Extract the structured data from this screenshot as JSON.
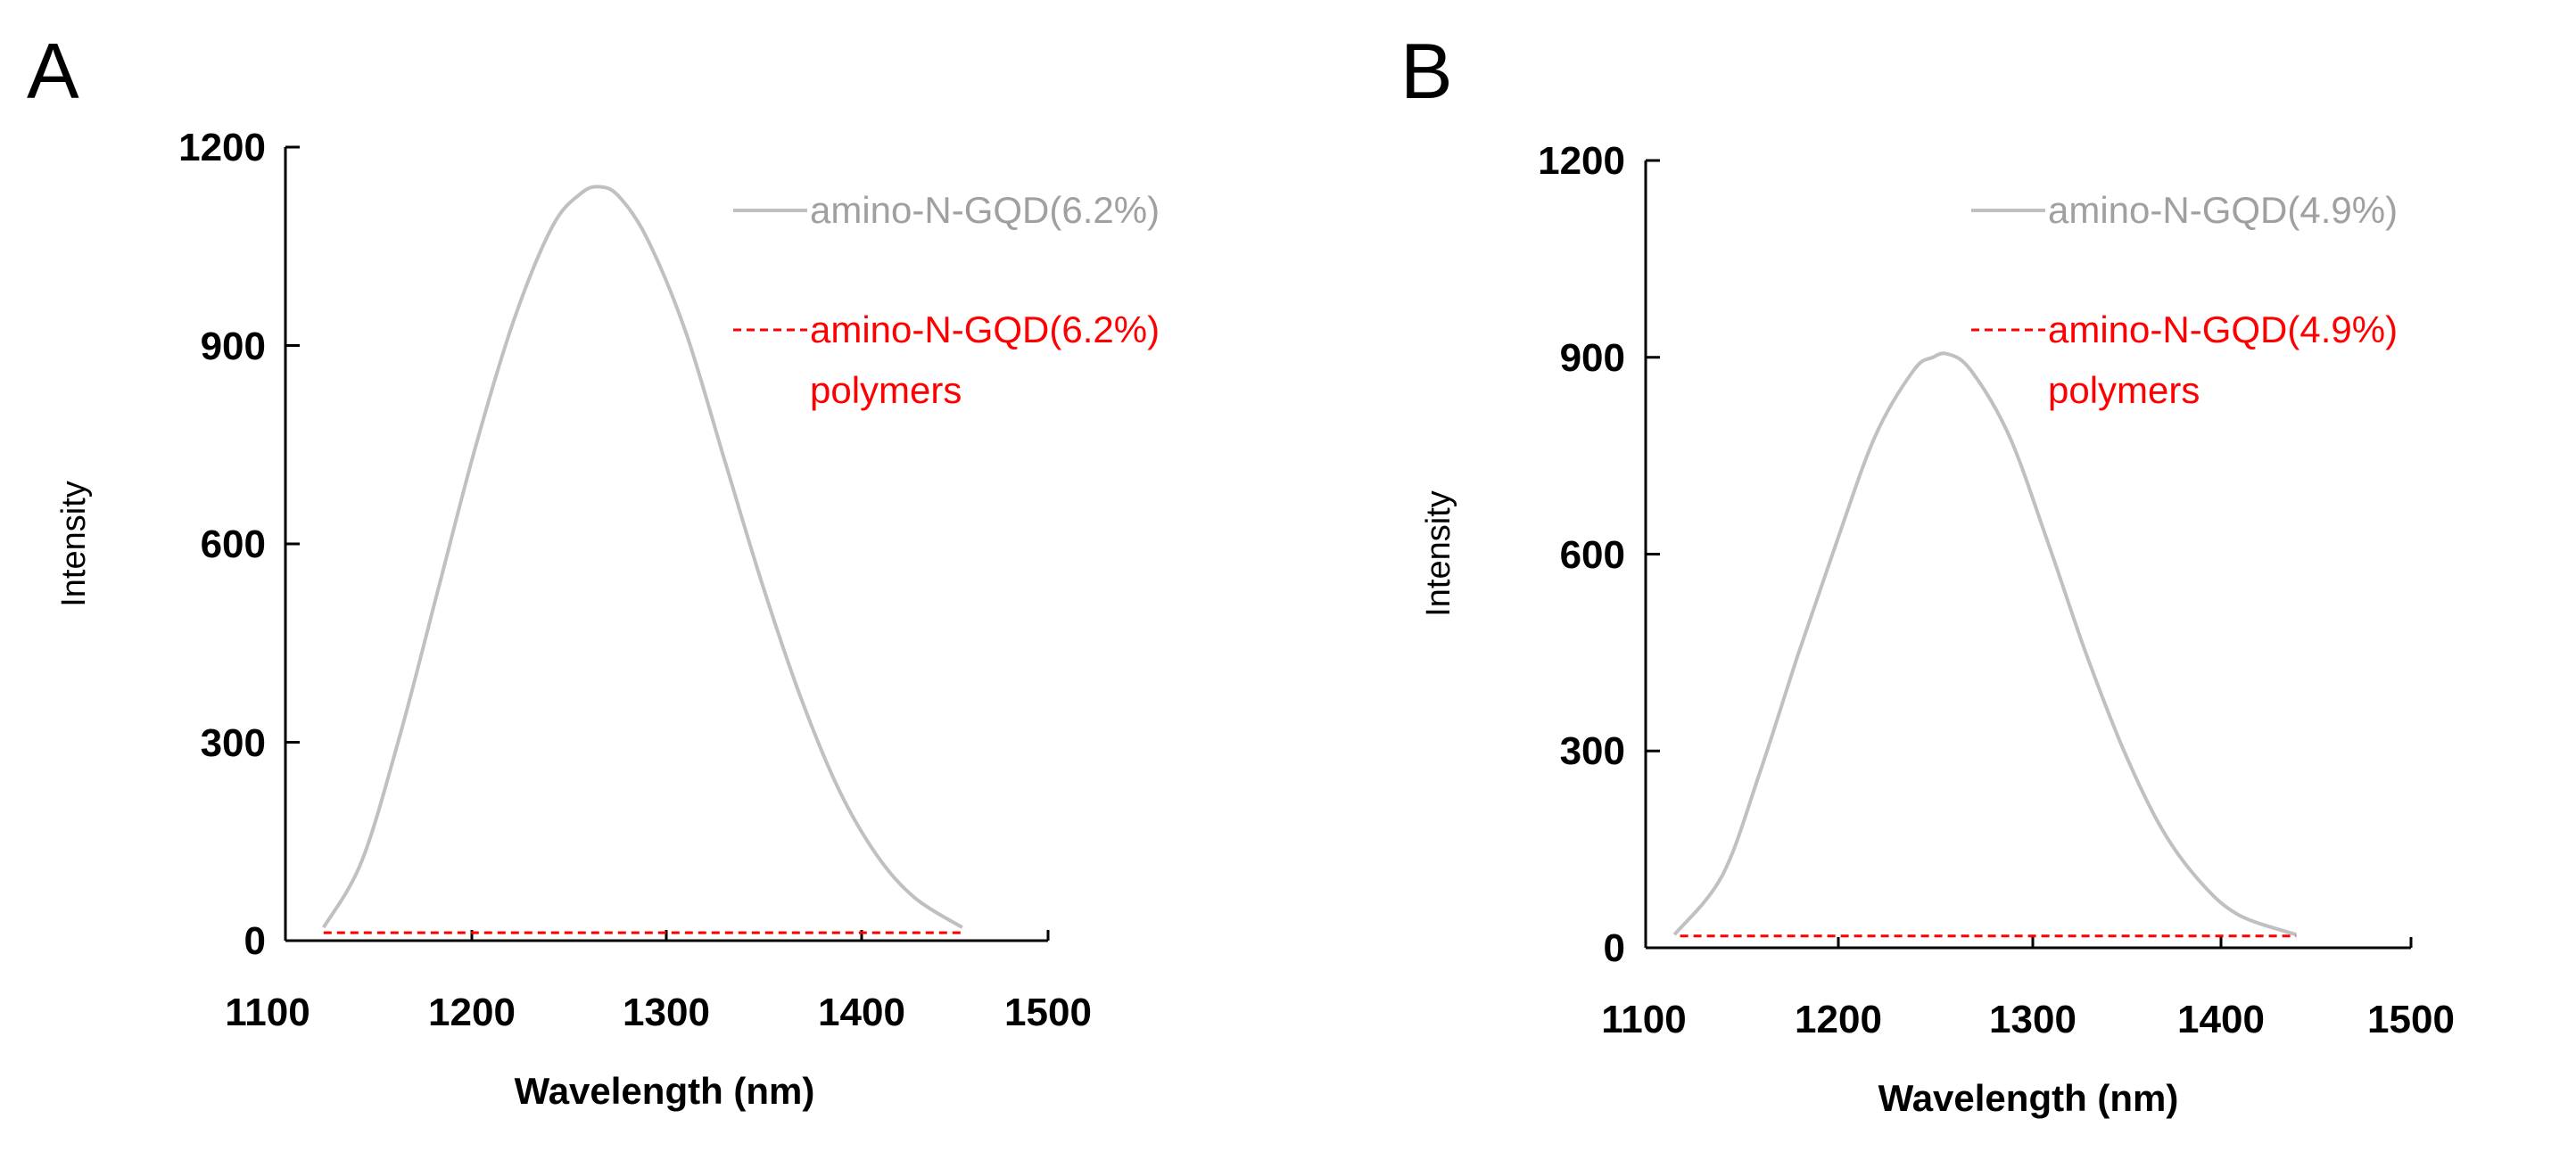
{
  "colors": {
    "gray": "#c0c0c0",
    "red": "#ff0000",
    "axis": "#000000"
  },
  "chart_data": [
    {
      "panel": "A",
      "type": "line",
      "xlabel": "Wavelength (nm)",
      "ylabel": "Intensity",
      "xlim": [
        1100,
        1500
      ],
      "ylim": [
        0,
        1200
      ],
      "xticks": [
        "1100",
        "1200",
        "1300",
        "1400",
        "1500"
      ],
      "yticks": [
        "0",
        "300",
        "600",
        "900",
        "1200"
      ],
      "series": [
        {
          "name": "amino-N-GQD(6.2%)",
          "style": "solid",
          "color": "#c0c0c0",
          "x": [
            1120,
            1140,
            1160,
            1180,
            1200,
            1220,
            1240,
            1255,
            1265,
            1275,
            1290,
            1310,
            1330,
            1350,
            1370,
            1390,
            1410,
            1430,
            1455
          ],
          "y": [
            20,
            120,
            310,
            530,
            750,
            940,
            1080,
            1130,
            1140,
            1125,
            1060,
            920,
            730,
            540,
            370,
            230,
            130,
            65,
            20
          ]
        },
        {
          "name": "amino-N-GQD(6.2%) polymers",
          "style": "dashed",
          "color": "#ff0000",
          "x": [
            1120,
            1455
          ],
          "y": [
            12,
            12
          ]
        }
      ],
      "legend": [
        {
          "line1": "amino-N-GQD(6.2%)",
          "line2": ""
        },
        {
          "line1": "amino-N-GQD(6.2%)",
          "line2": "polymers"
        }
      ]
    },
    {
      "panel": "B",
      "type": "line",
      "xlabel": "Wavelength (nm)",
      "ylabel": "Intensity",
      "xlim": [
        1100,
        1500
      ],
      "ylim": [
        0,
        1200
      ],
      "xticks": [
        "1100",
        "1200",
        "1300",
        "1400",
        "1500"
      ],
      "yticks": [
        "0",
        "300",
        "600",
        "900",
        "1200"
      ],
      "series": [
        {
          "name": "amino-N-GQD(4.9%)",
          "style": "solid",
          "color": "#c0c0c0",
          "x": [
            1115,
            1140,
            1160,
            1180,
            1200,
            1220,
            1240,
            1250,
            1258,
            1270,
            1290,
            1310,
            1330,
            1350,
            1370,
            1390,
            1410,
            1440
          ],
          "y": [
            20,
            110,
            270,
            450,
            620,
            780,
            880,
            900,
            905,
            880,
            780,
            620,
            450,
            300,
            180,
            100,
            50,
            20
          ]
        },
        {
          "name": "amino-N-GQD(4.9%) polymers",
          "style": "dashed",
          "color": "#ff0000",
          "x": [
            1118,
            1440
          ],
          "y": [
            18,
            18
          ]
        }
      ],
      "legend": [
        {
          "line1": "amino-N-GQD(4.9%)",
          "line2": ""
        },
        {
          "line1": "amino-N-GQD(4.9%)",
          "line2": "polymers"
        }
      ]
    }
  ]
}
